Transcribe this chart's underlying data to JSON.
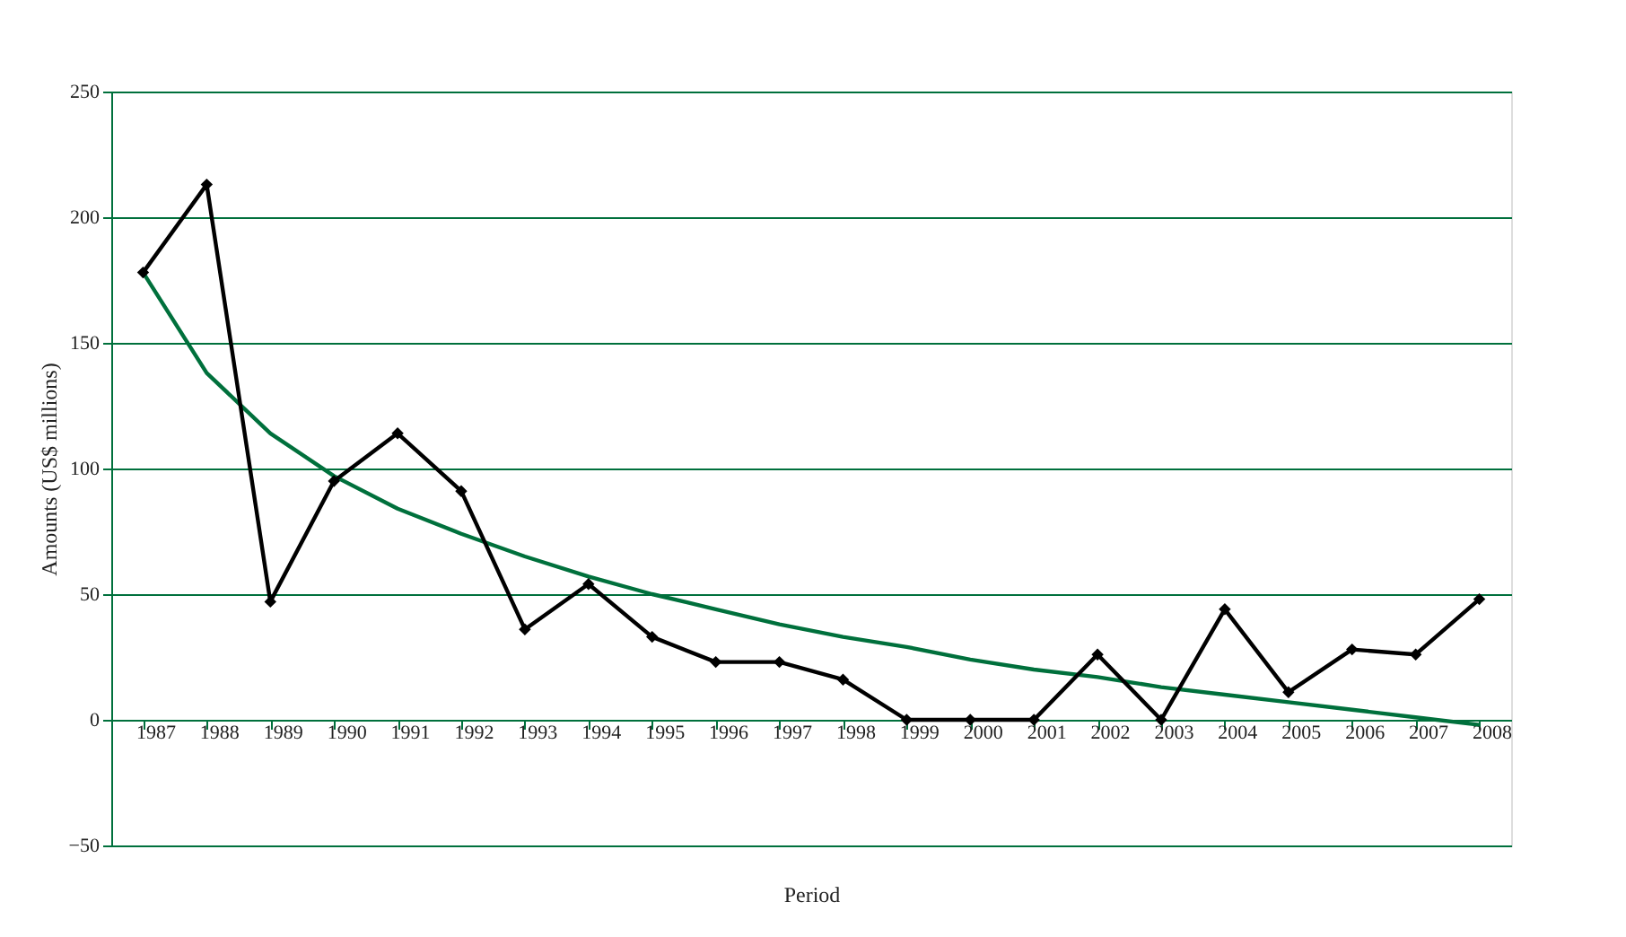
{
  "chart_data": {
    "type": "line",
    "xlabel": "Period",
    "ylabel": "Amounts (US$ millions)",
    "categories": [
      "1987",
      "1988",
      "1989",
      "1990",
      "1991",
      "1992",
      "1993",
      "1994",
      "1995",
      "1996",
      "1997",
      "1998",
      "1999",
      "2000",
      "2001",
      "2002",
      "2003",
      "2004",
      "2005",
      "2006",
      "2007",
      "2008"
    ],
    "series": [
      {
        "color": "#000000",
        "marker": "diamond",
        "values": [
          178,
          213,
          47,
          95,
          114,
          91,
          36,
          54,
          33,
          23,
          23,
          16,
          0,
          0,
          0,
          26,
          0,
          44,
          11,
          28,
          26,
          48
        ]
      },
      {
        "type": "line",
        "color": "#00703c",
        "marker": "none",
        "values": [
          178,
          138,
          114,
          97,
          84,
          74,
          65,
          57,
          50,
          44,
          38,
          33,
          29,
          24,
          20,
          17,
          13,
          10,
          7,
          4,
          1,
          -2
        ]
      }
    ],
    "ylim": [
      -50,
      250
    ],
    "yticks": [
      -50,
      0,
      50,
      100,
      150,
      200,
      250
    ],
    "grid": "y"
  }
}
